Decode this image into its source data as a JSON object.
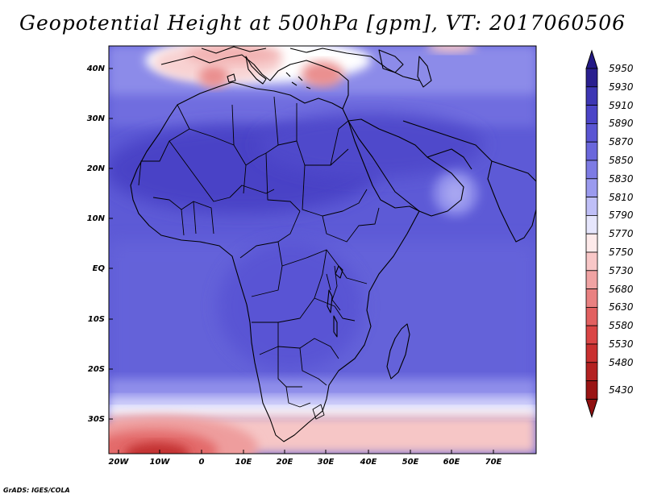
{
  "title": "Geopotential Height at 500hPa [gpm], VT: 2017060506",
  "footer": "GrADS: IGES/COLA",
  "lat_labels": [
    "40N",
    "30N",
    "20N",
    "10N",
    "EQ",
    "10S",
    "20S",
    "30S"
  ],
  "lon_labels": [
    "20W",
    "10W",
    "0",
    "10E",
    "20E",
    "30E",
    "40E",
    "50E",
    "60E",
    "70E"
  ],
  "colorbar": {
    "levels": [
      "5950",
      "5930",
      "5910",
      "5890",
      "5870",
      "5850",
      "5830",
      "5810",
      "5790",
      "5770",
      "5750",
      "5730",
      "5680",
      "5630",
      "5580",
      "5530",
      "5480",
      "5430"
    ],
    "colors": [
      "#2a1f8f",
      "#3d36b4",
      "#4b44c7",
      "#5a55d3",
      "#6a67dc",
      "#7d7be4",
      "#9a9aee",
      "#bfbff7",
      "#e6e6fc",
      "#fdeaea",
      "#f8c7c7",
      "#f0a3a3",
      "#e98181",
      "#e26060",
      "#da4545",
      "#c93030",
      "#b32121",
      "#9a1414"
    ],
    "top_arrow_color": "#241a86",
    "bottom_arrow_color": "#8f1010"
  }
}
